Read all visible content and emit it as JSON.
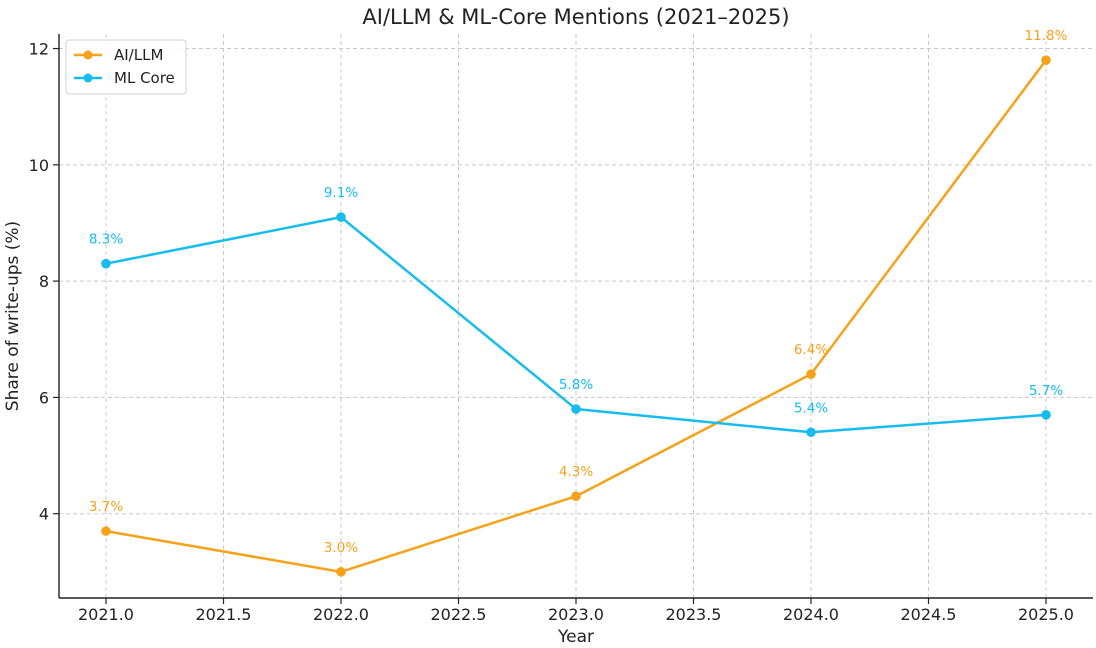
{
  "chart_data": {
    "type": "line",
    "title": "AI/LLM & ML-Core Mentions (2021–2025)",
    "xlabel": "Year",
    "ylabel": "Share of write-ups (%)",
    "xlim": [
      2020.8,
      2025.2
    ],
    "ylim": [
      2.55,
      12.25
    ],
    "x_ticks": [
      2021.0,
      2021.5,
      2022.0,
      2022.5,
      2023.0,
      2023.5,
      2024.0,
      2024.5,
      2025.0
    ],
    "x_tick_labels": [
      "2021.0",
      "2021.5",
      "2022.0",
      "2022.5",
      "2023.0",
      "2023.5",
      "2024.0",
      "2024.5",
      "2025.0"
    ],
    "y_ticks": [
      4,
      6,
      8,
      10,
      12
    ],
    "y_tick_labels": [
      "4",
      "6",
      "8",
      "10",
      "12"
    ],
    "grid": true,
    "legend_position": "top-left",
    "x": [
      2021,
      2022,
      2023,
      2024,
      2025
    ],
    "series": [
      {
        "name": "AI/LLM",
        "color": "#f5a21a",
        "values": [
          3.7,
          3.0,
          4.3,
          6.4,
          11.8
        ],
        "labels": [
          "3.7%",
          "3.0%",
          "4.3%",
          "6.4%",
          "11.8%"
        ]
      },
      {
        "name": "ML Core",
        "color": "#17bcef",
        "values": [
          8.3,
          9.1,
          5.8,
          5.4,
          5.7
        ],
        "labels": [
          "8.3%",
          "9.1%",
          "5.8%",
          "5.4%",
          "5.7%"
        ]
      }
    ]
  }
}
